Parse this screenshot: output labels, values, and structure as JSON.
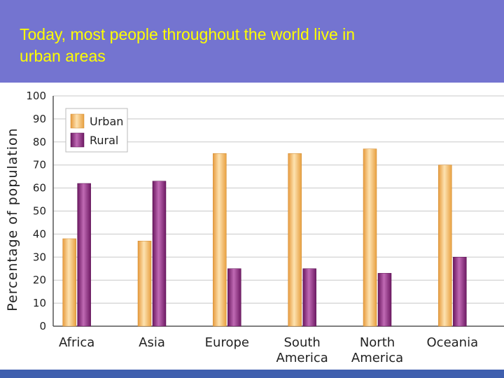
{
  "slide": {
    "title_line1": "Today, most people throughout the world live in",
    "title_line2": "urban areas"
  },
  "colors": {
    "background": "#7474d0",
    "title": "#ffff00",
    "urban": "#f2b257",
    "rural": "#8e2c80"
  },
  "chart_data": {
    "type": "bar",
    "categories": [
      [
        "Africa"
      ],
      [
        "Asia"
      ],
      [
        "Europe"
      ],
      [
        "South",
        "America"
      ],
      [
        "North",
        "America"
      ],
      [
        "Oceania"
      ]
    ],
    "series": [
      {
        "name": "Urban",
        "values": [
          38,
          37,
          75,
          75,
          77,
          70
        ]
      },
      {
        "name": "Rural",
        "values": [
          62,
          63,
          25,
          25,
          23,
          30
        ]
      }
    ],
    "ylabel": "Percentage of population",
    "xlabel": "",
    "ylim": [
      0,
      100
    ],
    "yticks": [
      0,
      10,
      20,
      30,
      40,
      50,
      60,
      70,
      80,
      90,
      100
    ],
    "grid": true,
    "legend": "top-left"
  }
}
